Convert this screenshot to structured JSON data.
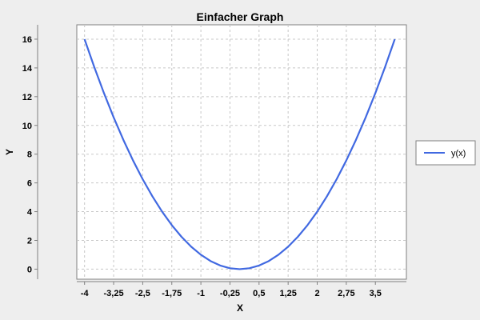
{
  "chart_data": {
    "type": "line",
    "title": "Einfacher Graph",
    "xlabel": "X",
    "ylabel": "Y",
    "xlim": [
      -4.2,
      4.3
    ],
    "ylim": [
      -0.7,
      17
    ],
    "x_ticks": [
      -4,
      -3.25,
      -2.5,
      -1.75,
      -1,
      -0.25,
      0.5,
      1.25,
      2,
      2.75,
      3.5
    ],
    "x_tick_labels": [
      "-4",
      "-3,25",
      "-2,5",
      "-1,75",
      "-1",
      "-0,25",
      "0,5",
      "1,25",
      "2",
      "2,75",
      "3,5"
    ],
    "y_ticks": [
      0,
      2,
      4,
      6,
      8,
      10,
      12,
      14,
      16
    ],
    "y_tick_labels": [
      "0",
      "2",
      "4",
      "6",
      "8",
      "10",
      "12",
      "14",
      "16"
    ],
    "grid": true,
    "legend_position": "right",
    "series": [
      {
        "name": "y(x)",
        "color": "#4169e1",
        "x": [
          -4,
          -3.75,
          -3.5,
          -3.25,
          -3,
          -2.75,
          -2.5,
          -2.25,
          -2,
          -1.75,
          -1.5,
          -1.25,
          -1,
          -0.75,
          -0.5,
          -0.25,
          0,
          0.25,
          0.5,
          0.75,
          1,
          1.25,
          1.5,
          1.75,
          2,
          2.25,
          2.5,
          2.75,
          3,
          3.25,
          3.5,
          3.75,
          4
        ],
        "y": [
          16,
          14.0625,
          12.25,
          10.5625,
          9,
          7.5625,
          6.25,
          5.0625,
          4,
          3.0625,
          2.25,
          1.5625,
          1,
          0.5625,
          0.25,
          0.0625,
          0,
          0.0625,
          0.25,
          0.5625,
          1,
          1.5625,
          2.25,
          3.0625,
          4,
          5.0625,
          6.25,
          7.5625,
          9,
          10.5625,
          12.25,
          14.0625,
          16
        ]
      }
    ]
  }
}
